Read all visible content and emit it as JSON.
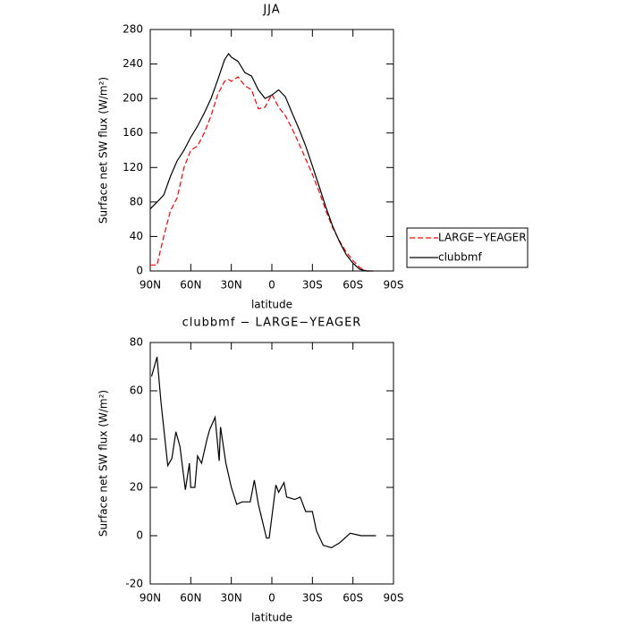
{
  "chart_data": [
    {
      "type": "line",
      "title": "JJA",
      "x_label": "latitude",
      "y_label": "Surface net SW flux (W/m²)",
      "x": [
        90,
        85,
        80,
        75,
        70,
        65,
        60,
        55,
        50,
        45,
        40,
        35,
        32,
        30,
        25,
        20,
        15,
        10,
        5,
        0,
        -5,
        -10,
        -15,
        -20,
        -25,
        -30,
        -35,
        -40,
        -45,
        -50,
        -55,
        -60,
        -65,
        -70,
        -75
      ],
      "series": [
        {
          "name": "LARGE−YEAGER",
          "color": "#ff0000",
          "linestyle": "dashed",
          "values": [
            7,
            7,
            40,
            70,
            85,
            120,
            140,
            145,
            160,
            180,
            205,
            220,
            222,
            220,
            225,
            215,
            210,
            188,
            190,
            205,
            190,
            180,
            165,
            148,
            130,
            112,
            92,
            70,
            50,
            35,
            22,
            12,
            4,
            0,
            0
          ]
        },
        {
          "name": "clubbmf",
          "color": "#000000",
          "linestyle": "solid",
          "values": [
            72,
            80,
            88,
            110,
            128,
            140,
            155,
            168,
            183,
            200,
            222,
            245,
            252,
            248,
            243,
            230,
            226,
            210,
            200,
            204,
            210,
            202,
            183,
            165,
            145,
            122,
            98,
            74,
            52,
            34,
            19,
            9,
            2,
            0,
            0
          ]
        }
      ],
      "xlim": [
        90,
        -90
      ],
      "xticks": [
        {
          "value": 90,
          "label": "90N"
        },
        {
          "value": 60,
          "label": "60N"
        },
        {
          "value": 30,
          "label": "30N"
        },
        0,
        {
          "value": -30,
          "label": "30S"
        },
        {
          "value": -60,
          "label": "60S"
        },
        {
          "value": -90,
          "label": "90S"
        }
      ],
      "ylim": [
        0,
        280
      ],
      "yticks": [
        0,
        40,
        80,
        120,
        160,
        200,
        240,
        280
      ],
      "legend": "right"
    },
    {
      "type": "line",
      "title": "clubbmf − LARGE−YEAGER",
      "x_label": "latitude",
      "y_label": "Surface net SW flux (W/m²)",
      "x": [
        89,
        85,
        82,
        77,
        74,
        71,
        68,
        64,
        61,
        60,
        57,
        55,
        52,
        48,
        46,
        42,
        39,
        38,
        34,
        30,
        26,
        22,
        16,
        13,
        10,
        4,
        2,
        -3,
        -5,
        -9,
        -11,
        -17,
        -21,
        -25,
        -30,
        -33,
        -38,
        -44,
        -50,
        -58,
        -66,
        -77
      ],
      "series": [
        {
          "color": "#000000",
          "linestyle": "solid",
          "values": [
            66,
            74,
            55,
            29,
            32,
            43,
            37,
            19,
            30,
            20,
            20,
            33,
            30,
            40,
            44,
            49,
            31,
            45,
            30,
            20,
            13,
            14,
            14,
            23,
            13,
            -1,
            -1,
            21,
            18,
            22,
            16,
            15,
            16,
            10,
            10,
            2,
            -4,
            -5,
            -3,
            1,
            0,
            0
          ]
        }
      ],
      "xlim": [
        90,
        -90
      ],
      "xticks": [
        {
          "value": 90,
          "label": "90N"
        },
        {
          "value": 60,
          "label": "60N"
        },
        {
          "value": 30,
          "label": "30N"
        },
        0,
        {
          "value": -30,
          "label": "30S"
        },
        {
          "value": -60,
          "label": "60S"
        },
        {
          "value": -90,
          "label": "90S"
        }
      ],
      "ylim": [
        -20,
        80
      ],
      "yticks": [
        -20,
        0,
        20,
        40,
        60,
        80
      ]
    }
  ]
}
